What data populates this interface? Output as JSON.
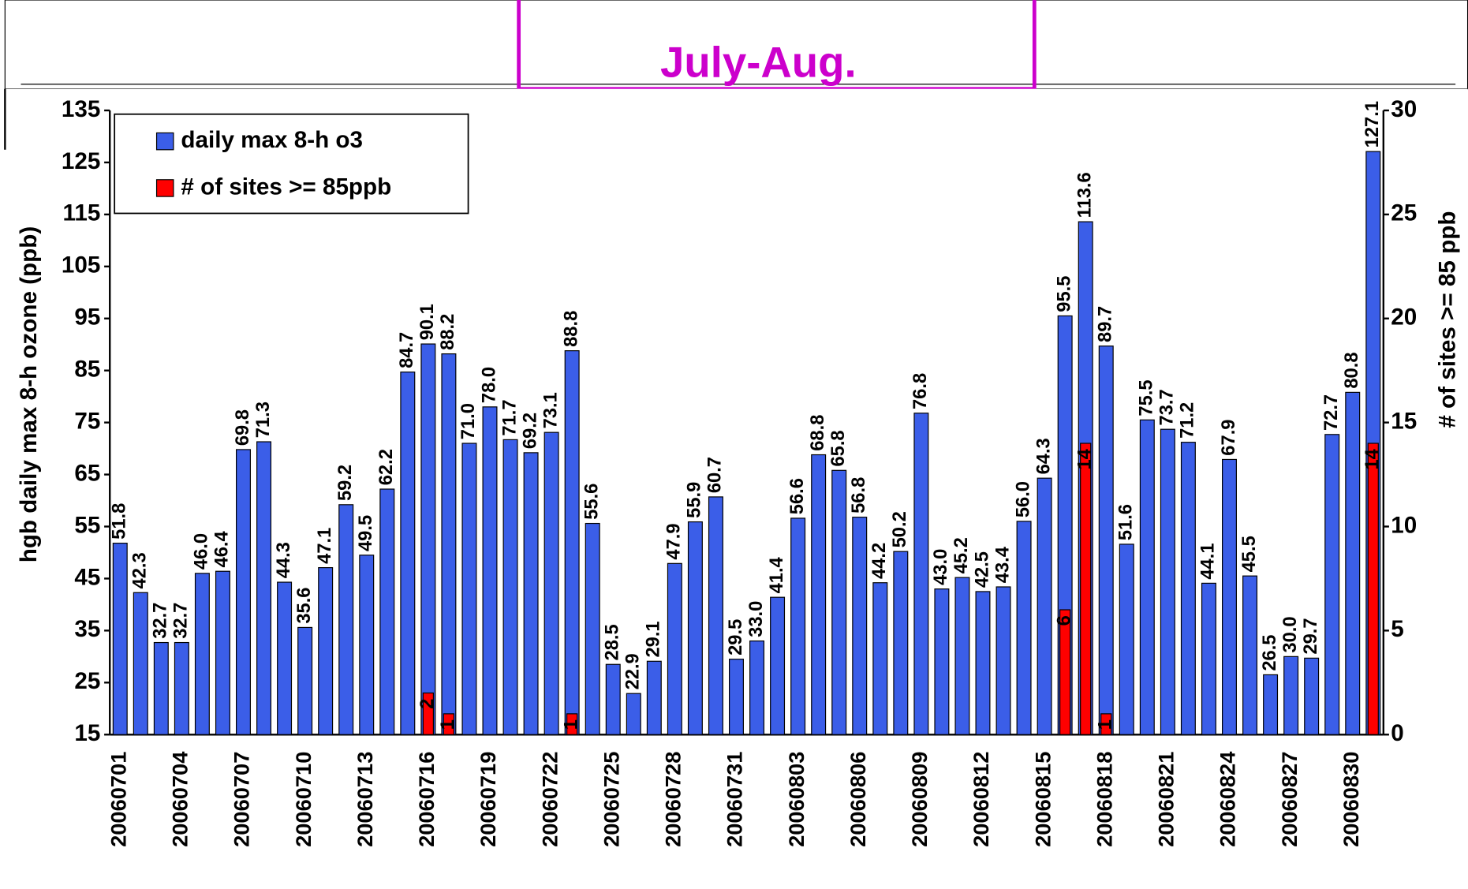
{
  "chart_data": {
    "type": "bar",
    "annotation": "July-Aug.",
    "ylabel": "hgb daily max 8-h ozone (ppb)",
    "y2label": "# of sites >= 85 ppb",
    "categories": [
      "20060701",
      null,
      null,
      "20060704",
      null,
      null,
      "20060707",
      null,
      null,
      "20060710",
      null,
      null,
      "20060713",
      null,
      null,
      "20060716",
      null,
      null,
      "20060719",
      null,
      null,
      "20060722",
      null,
      null,
      "20060725",
      null,
      null,
      "20060728",
      null,
      null,
      "20060731",
      null,
      null,
      "20060803",
      null,
      null,
      "20060806",
      null,
      null,
      "20060809",
      null,
      null,
      "20060812",
      null,
      null,
      "20060815",
      null,
      null,
      "20060818",
      null,
      null,
      "20060821",
      null,
      null,
      "20060824",
      null,
      null,
      "20060827",
      null,
      null,
      "20060830",
      null
    ],
    "series": [
      {
        "name": "daily max 8-h o3",
        "color": "#3b5ee8",
        "values": [
          51.8,
          42.3,
          32.7,
          32.7,
          46.0,
          46.4,
          69.8,
          71.3,
          44.3,
          35.6,
          47.1,
          59.2,
          49.5,
          62.2,
          84.7,
          90.1,
          88.2,
          71.0,
          78.0,
          71.7,
          69.2,
          73.1,
          88.8,
          55.6,
          28.5,
          22.9,
          29.1,
          47.9,
          55.9,
          60.7,
          29.5,
          33.0,
          41.4,
          56.6,
          68.8,
          65.8,
          56.8,
          44.2,
          50.2,
          76.8,
          43.0,
          45.2,
          42.5,
          43.4,
          56.0,
          64.3,
          95.5,
          113.6,
          89.7,
          51.6,
          75.5,
          73.7,
          71.2,
          44.1,
          67.9,
          45.5,
          26.5,
          30.0,
          29.7,
          72.7,
          80.8,
          127.1
        ],
        "value_labels": [
          "51.8",
          "42.3",
          "32.7",
          "32.7",
          "46.0",
          "46.4",
          "69.8",
          "71.3",
          "44.3",
          "35.6",
          "47.1",
          "59.2",
          "49.5",
          "62.2",
          "84.7",
          "90.1",
          "88.2",
          "71.0",
          "78.0",
          "71.7",
          "69.2",
          "73.1",
          "88.8",
          "55.6",
          "28.5",
          "22.9",
          "29.1",
          "47.9",
          "55.9",
          "60.7",
          "29.5",
          "33.0",
          "41.4",
          "56.6",
          "68.8",
          "65.8",
          "56.8",
          "44.2",
          "50.2",
          "76.8",
          "43.0",
          "45.2",
          "42.5",
          "43.4",
          "56.0",
          "64.3",
          "95.5",
          "113.6",
          "89.7",
          "51.6",
          "75.5",
          "73.7",
          "71.2",
          "44.1",
          "67.9",
          "45.5",
          "26.5",
          "30.0",
          "29.7",
          "72.7",
          "80.8",
          "127.1"
        ]
      },
      {
        "name": "# of sites >= 85ppb",
        "color": "#ff0000",
        "axis": "y2",
        "values": [
          0,
          0,
          0,
          0,
          0,
          0,
          0,
          0,
          0,
          0,
          0,
          0,
          0,
          0,
          0,
          2,
          1,
          0,
          0,
          0,
          0,
          0,
          1,
          0,
          0,
          0,
          0,
          0,
          0,
          0,
          0,
          0,
          0,
          0,
          0,
          0,
          0,
          0,
          0,
          0,
          0,
          0,
          0,
          0,
          0,
          0,
          6,
          14,
          1,
          0,
          0,
          0,
          0,
          0,
          0,
          0,
          0,
          0,
          0,
          0,
          0,
          14
        ]
      }
    ],
    "ylim": [
      15,
      135
    ],
    "yticks": [
      15,
      25,
      35,
      45,
      55,
      65,
      75,
      85,
      95,
      105,
      115,
      125,
      135
    ],
    "y2lim": [
      0,
      30
    ],
    "y2ticks": [
      0,
      5,
      10,
      15,
      20,
      25,
      30
    ],
    "legend": "upper left"
  }
}
